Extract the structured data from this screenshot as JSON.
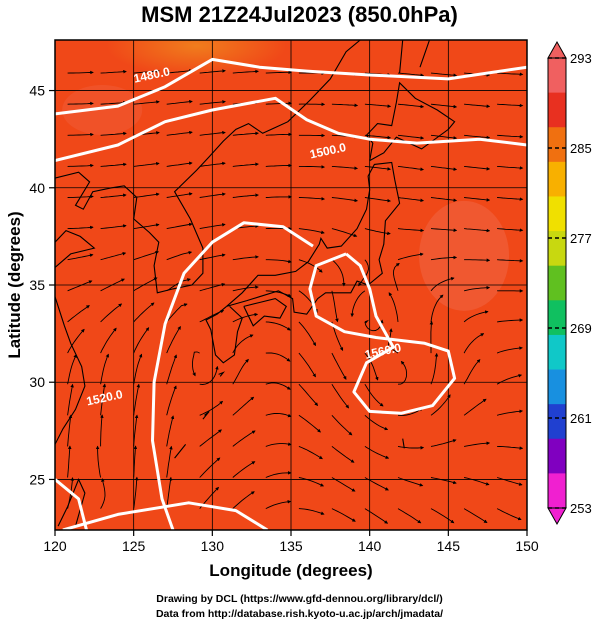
{
  "chart_data": {
    "type": "heatmap",
    "title": "MSM 21Z24Jul2023 (850.0hPa)",
    "xlabel": "Longitude (degrees)",
    "ylabel": "Latitude  (degrees)",
    "xlim": [
      120,
      150
    ],
    "ylim": [
      22.4,
      47.6
    ],
    "x_ticks": [
      120,
      125,
      130,
      135,
      140,
      145,
      150
    ],
    "y_ticks": [
      25,
      30,
      35,
      40,
      45
    ],
    "grid": true,
    "colorbar": {
      "min": 253,
      "max": 293,
      "tick_labels": [
        253,
        261,
        269,
        277,
        285,
        293
      ],
      "colors": [
        "#f020d0",
        "#8000c0",
        "#2040d0",
        "#1890e0",
        "#10c8c8",
        "#10c060",
        "#60c020",
        "#c8d810",
        "#f0e000",
        "#f8b000",
        "#f07010",
        "#e83020",
        "#f06060"
      ]
    },
    "field_color": "#f04818",
    "contour_labels": [
      {
        "text": "1480.0",
        "lon": 126.2,
        "lat": 45.6
      },
      {
        "text": "1500.0",
        "lon": 137.4,
        "lat": 41.7
      },
      {
        "text": "1560.0",
        "lon": 140.9,
        "lat": 31.4
      },
      {
        "text": "1520.0",
        "lon": 123.2,
        "lat": 29.0
      }
    ],
    "contours": [
      {
        "points": [
          [
            120,
            43.8
          ],
          [
            124,
            44.2
          ],
          [
            127,
            45.2
          ],
          [
            130,
            46.6
          ],
          [
            133,
            46.2
          ],
          [
            136,
            46.0
          ],
          [
            140,
            45.8
          ],
          [
            145,
            45.6
          ],
          [
            150,
            46.2
          ]
        ]
      },
      {
        "points": [
          [
            120,
            41.4
          ],
          [
            124,
            42.2
          ],
          [
            127,
            43.4
          ],
          [
            130,
            44.0
          ],
          [
            134,
            44.6
          ],
          [
            136,
            43.5
          ],
          [
            138,
            42.8
          ],
          [
            140,
            42.5
          ],
          [
            143,
            42.3
          ],
          [
            147,
            42.5
          ],
          [
            150,
            42.2
          ]
        ]
      },
      {
        "points": [
          [
            127.5,
            22.4
          ],
          [
            126.8,
            24.0
          ],
          [
            126.2,
            27.0
          ],
          [
            126.3,
            30.0
          ],
          [
            127.0,
            33.0
          ],
          [
            128.2,
            35.6
          ],
          [
            130.0,
            37.2
          ],
          [
            132.0,
            38.2
          ],
          [
            134.5,
            38.0
          ],
          [
            136.4,
            37.0
          ]
        ]
      },
      {
        "points": [
          [
            138.5,
            36.6
          ],
          [
            136.6,
            36.0
          ],
          [
            136.2,
            34.8
          ],
          [
            136.6,
            33.4
          ],
          [
            138.4,
            32.6
          ],
          [
            140.4,
            32.3
          ],
          [
            143.5,
            32.0
          ],
          [
            145.0,
            31.6
          ],
          [
            145.4,
            30.2
          ],
          [
            144.0,
            28.8
          ],
          [
            142.0,
            28.4
          ],
          [
            140.0,
            28.5
          ],
          [
            139.0,
            29.5
          ],
          [
            139.8,
            31.0
          ],
          [
            141.5,
            31.8
          ],
          [
            140.4,
            33.4
          ],
          [
            140.0,
            34.8
          ],
          [
            139.4,
            36.0
          ],
          [
            138.5,
            36.6
          ]
        ]
      },
      {
        "points": [
          [
            120,
            25.0
          ],
          [
            121.5,
            24.0
          ],
          [
            122,
            22.4
          ]
        ]
      },
      {
        "points": [
          [
            120.5,
            22.4
          ],
          [
            124.0,
            23.2
          ],
          [
            128.5,
            23.8
          ],
          [
            131.5,
            23.4
          ],
          [
            133.5,
            22.4
          ]
        ]
      }
    ],
    "stream_vortices": [
      {
        "lon": 140.0,
        "lat": 33.2,
        "strength": 1.0
      },
      {
        "lon": 141.8,
        "lat": 30.2,
        "strength": 1.1
      },
      {
        "lon": 129.5,
        "lat": 30.5,
        "strength": 0.25
      },
      {
        "lon": 123.0,
        "lat": 24.0,
        "strength": 0.25
      }
    ],
    "credits": [
      "Drawing by DCL (https://www.gfd-dennou.org/library/dcl/)",
      "Data from http://database.rish.kyoto-u.ac.jp/arch/jmadata/"
    ]
  }
}
